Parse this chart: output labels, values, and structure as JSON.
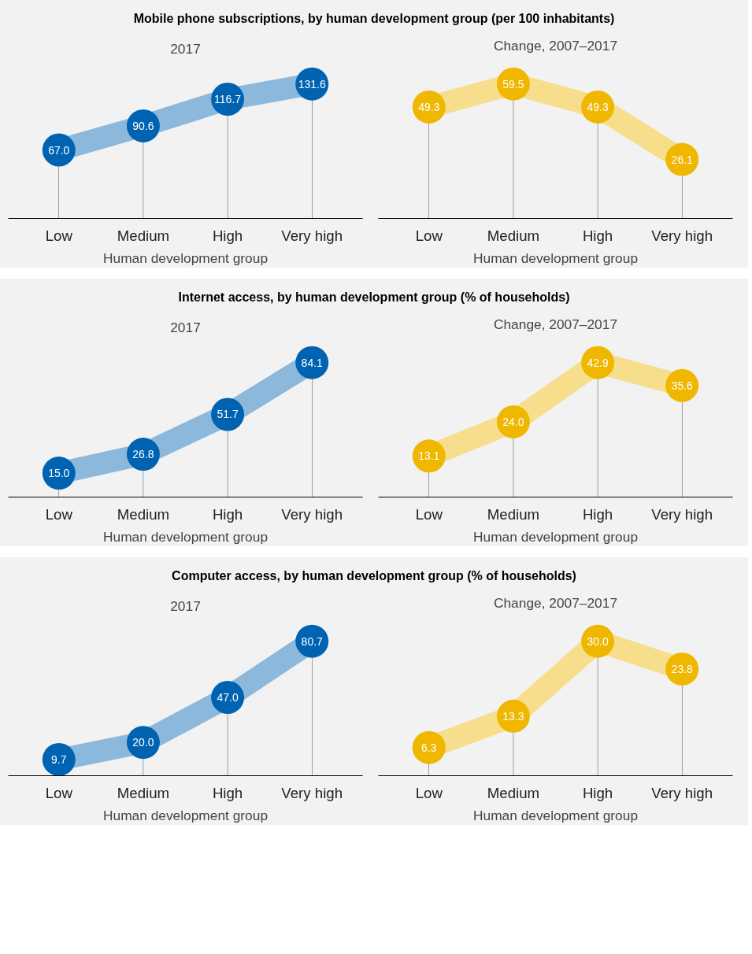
{
  "chart_data": [
    {
      "type": "lollipop",
      "title": "Mobile phone subscriptions, by human development group (per 100 inhabitants)",
      "subtitle": "2017",
      "xlabel": "Human development group",
      "categories": [
        "Low",
        "Medium",
        "High",
        "Very high"
      ],
      "marker": "circle",
      "series": [
        {
          "color": "#0063b1",
          "values": [
            67.0,
            90.6,
            116.7,
            131.6
          ],
          "value_labels": [
            "67.0",
            "90.6",
            "116.7",
            "131.6"
          ]
        }
      ]
    },
    {
      "type": "lollipop",
      "subtitle": "Change, 2007–2017",
      "xlabel": "Human development group",
      "categories": [
        "Low",
        "Medium",
        "High",
        "Very high"
      ],
      "marker": "circle",
      "series": [
        {
          "color": "#efb700",
          "values": [
            49.3,
            59.5,
            49.3,
            26.1
          ],
          "value_labels": [
            "49.3",
            "59.5",
            "49.3",
            "26.1"
          ]
        }
      ]
    },
    {
      "type": "lollipop",
      "title": "Internet access, by human development group (% of households)",
      "subtitle": "2017",
      "xlabel": "Human development group",
      "categories": [
        "Low",
        "Medium",
        "High",
        "Very high"
      ],
      "marker": "circle",
      "series": [
        {
          "color": "#0063b1",
          "values": [
            15.0,
            26.8,
            51.7,
            84.1
          ],
          "value_labels": [
            "15.0",
            "26.8",
            "51.7",
            "84.1"
          ]
        }
      ]
    },
    {
      "type": "lollipop",
      "subtitle": "Change, 2007–2017",
      "xlabel": "Human development group",
      "categories": [
        "Low",
        "Medium",
        "High",
        "Very high"
      ],
      "marker": "circle",
      "series": [
        {
          "color": "#efb700",
          "values": [
            13.1,
            24.0,
            42.9,
            35.6
          ],
          "value_labels": [
            "13.1",
            "24.0",
            "42.9",
            "35.6"
          ]
        }
      ]
    },
    {
      "type": "lollipop",
      "title": "Computer access, by human development group (% of households)",
      "subtitle": "2017",
      "xlabel": "Human development group",
      "categories": [
        "Low",
        "Medium",
        "High",
        "Very high"
      ],
      "marker": "circle",
      "series": [
        {
          "color": "#0063b1",
          "values": [
            9.7,
            20.0,
            47.0,
            80.7
          ],
          "value_labels": [
            "9.7",
            "20.0",
            "47.0",
            "80.7"
          ]
        }
      ]
    },
    {
      "type": "lollipop",
      "subtitle": "Change, 2007–2017",
      "xlabel": "Human development group",
      "categories": [
        "Low",
        "Medium",
        "High",
        "Very high"
      ],
      "marker": "circle",
      "series": [
        {
          "color": "#efb700",
          "values": [
            6.3,
            13.3,
            30.0,
            23.8
          ],
          "value_labels": [
            "6.3",
            "13.3",
            "30.0",
            "23.8"
          ]
        }
      ]
    }
  ]
}
